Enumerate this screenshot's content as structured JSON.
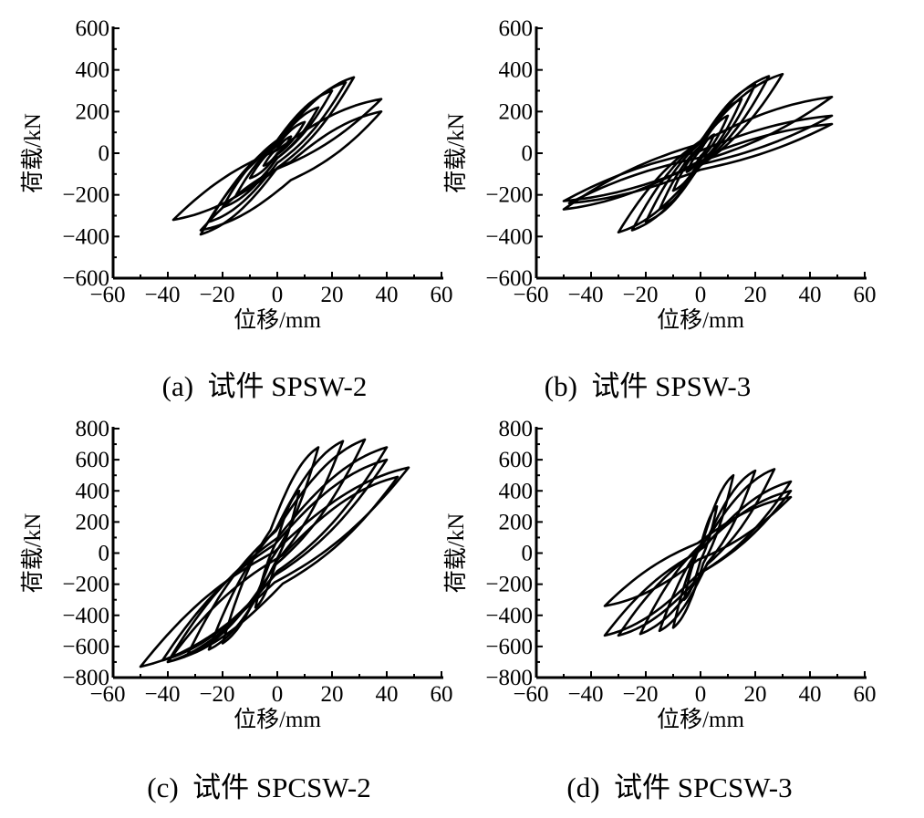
{
  "colors": {
    "line": "#000000",
    "background": "#ffffff"
  },
  "chart_data": [
    {
      "type": "line",
      "caption": "(a)  试件 SPSW-2",
      "xlabel": "位移/mm",
      "ylabel": "荷载/kN",
      "xlim": [
        -60,
        60
      ],
      "ylim": [
        -600,
        600
      ],
      "xticks": [
        "−60",
        "−40",
        "−20",
        "0",
        "20",
        "40",
        "60"
      ],
      "yticks": [
        "−600",
        "−400",
        "−200",
        "0",
        "200",
        "400",
        "600"
      ],
      "xtick_values": [
        -60,
        -40,
        -20,
        0,
        20,
        40,
        60
      ],
      "ytick_values": [
        -600,
        -400,
        -200,
        0,
        200,
        400,
        600
      ],
      "grid": false,
      "cycles_peak_points": [
        [
          5,
          80,
          -5,
          -60
        ],
        [
          10,
          150,
          -10,
          -120
        ],
        [
          15,
          220,
          -15,
          -200
        ],
        [
          20,
          300,
          -20,
          -260
        ],
        [
          25,
          340,
          -25,
          -330
        ],
        [
          28,
          365,
          -28,
          -390
        ],
        [
          38,
          260,
          -38,
          -320
        ],
        [
          38,
          200,
          -28,
          -370
        ]
      ]
    },
    {
      "type": "line",
      "caption": "(b)  试件 SPSW-3",
      "xlabel": "位移/mm",
      "ylabel": "荷载/kN",
      "xlim": [
        -60,
        60
      ],
      "ylim": [
        -600,
        600
      ],
      "xticks": [
        "−60",
        "−40",
        "−20",
        "0",
        "20",
        "40",
        "60"
      ],
      "yticks": [
        "−600",
        "−400",
        "−200",
        "0",
        "200",
        "400",
        "600"
      ],
      "xtick_values": [
        -60,
        -40,
        -20,
        0,
        20,
        40,
        60
      ],
      "ytick_values": [
        -600,
        -400,
        -200,
        0,
        200,
        400,
        600
      ],
      "grid": false,
      "cycles_peak_points": [
        [
          5,
          90,
          -5,
          -90
        ],
        [
          10,
          180,
          -10,
          -180
        ],
        [
          15,
          260,
          -15,
          -270
        ],
        [
          20,
          330,
          -20,
          -330
        ],
        [
          25,
          370,
          -25,
          -370
        ],
        [
          30,
          380,
          -30,
          -380
        ],
        [
          48,
          270,
          -50,
          -270
        ],
        [
          48,
          180,
          -50,
          -230
        ],
        [
          48,
          140,
          -48,
          -240
        ]
      ]
    },
    {
      "type": "line",
      "caption": "(c)  试件 SPCSW-2",
      "xlabel": "位移/mm",
      "ylabel": "荷载/kN",
      "xlim": [
        -60,
        60
      ],
      "ylim": [
        -800,
        800
      ],
      "xticks": [
        "−60",
        "−40",
        "−20",
        "0",
        "20",
        "40",
        "60"
      ],
      "yticks": [
        "−800",
        "−600",
        "−400",
        "−200",
        "0",
        "200",
        "400",
        "600",
        "800"
      ],
      "xtick_values": [
        -60,
        -40,
        -20,
        0,
        20,
        40,
        60
      ],
      "ytick_values": [
        -800,
        -600,
        -400,
        -200,
        0,
        200,
        400,
        600,
        800
      ],
      "grid": false,
      "cycles_peak_points": [
        [
          8,
          400,
          -8,
          -350
        ],
        [
          15,
          680,
          -20,
          -580
        ],
        [
          24,
          720,
          -25,
          -620
        ],
        [
          32,
          730,
          -33,
          -660
        ],
        [
          40,
          680,
          -40,
          -700
        ],
        [
          40,
          600,
          -42,
          -690
        ],
        [
          48,
          550,
          -50,
          -730
        ],
        [
          44,
          490,
          -40,
          -700
        ]
      ]
    },
    {
      "type": "line",
      "caption": "(d)  试件 SPCSW-3",
      "xlabel": "位移/mm",
      "ylabel": "荷载/kN",
      "xlim": [
        -60,
        60
      ],
      "ylim": [
        -800,
        800
      ],
      "xticks": [
        "−60",
        "−40",
        "−20",
        "0",
        "20",
        "40",
        "60"
      ],
      "yticks": [
        "−800",
        "−600",
        "−400",
        "−200",
        "0",
        "200",
        "400",
        "600",
        "800"
      ],
      "xtick_values": [
        -60,
        -40,
        -20,
        0,
        20,
        40,
        60
      ],
      "ytick_values": [
        -800,
        -600,
        -400,
        -200,
        0,
        200,
        400,
        600,
        800
      ],
      "grid": false,
      "cycles_peak_points": [
        [
          6,
          300,
          -6,
          -300
        ],
        [
          12,
          500,
          -10,
          -480
        ],
        [
          20,
          530,
          -15,
          -500
        ],
        [
          27,
          540,
          -22,
          -520
        ],
        [
          33,
          460,
          -30,
          -530
        ],
        [
          33,
          400,
          -35,
          -530
        ],
        [
          33,
          360,
          -35,
          -340
        ]
      ]
    }
  ]
}
